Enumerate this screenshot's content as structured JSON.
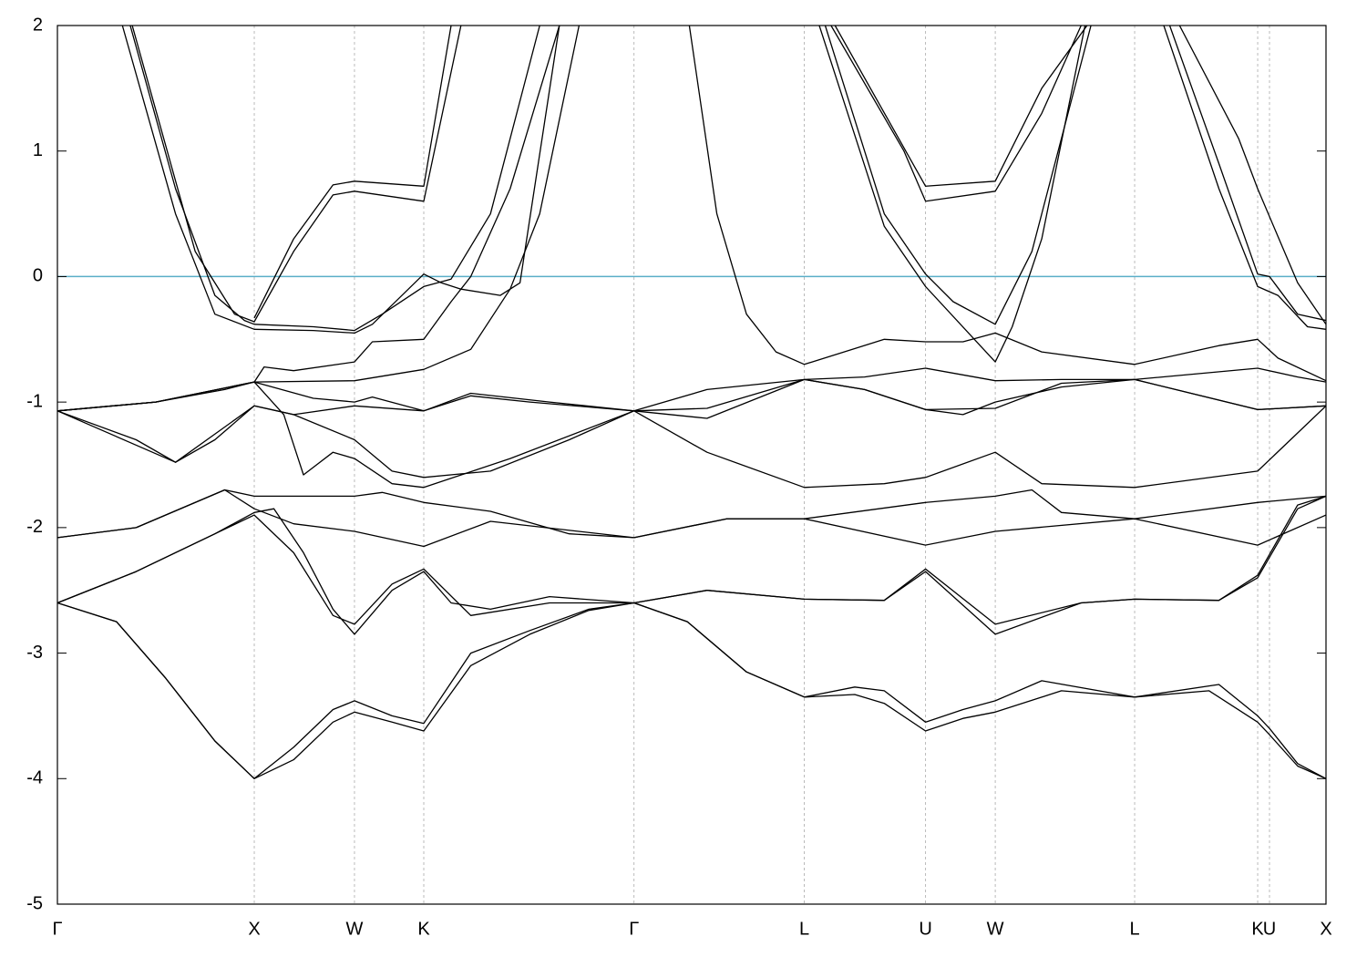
{
  "chart_data": {
    "type": "line",
    "xlim": [
      0,
      6.444
    ],
    "ylim": [
      -5,
      2
    ],
    "yticks": [
      -5,
      -4,
      -3,
      -2,
      -1,
      0,
      1,
      2
    ],
    "xticks": [
      {
        "value": 0,
        "label": "Γ"
      },
      {
        "value": 1.0,
        "label": "X"
      },
      {
        "value": 1.509,
        "label": "W"
      },
      {
        "value": 1.861,
        "label": "K"
      },
      {
        "value": 2.929,
        "label": "Γ"
      },
      {
        "value": 3.794,
        "label": "L"
      },
      {
        "value": 4.41,
        "label": "U"
      },
      {
        "value": 4.764,
        "label": "W"
      },
      {
        "value": 5.472,
        "label": "L"
      },
      {
        "value": 6.097,
        "label": "K"
      },
      {
        "value": 6.157,
        "label": "U"
      },
      {
        "value": 6.444,
        "label": "X"
      }
    ],
    "grid": true,
    "grid_color": "#aaaaaa",
    "hline": {
      "value": 0,
      "color": "#5aaec8"
    },
    "series": [
      {
        "color": "#000000",
        "x": [
          0,
          0.3,
          0.55,
          0.8,
          1.0,
          1.2,
          1.4,
          1.509,
          1.7,
          1.861,
          2.1,
          2.4,
          2.7,
          2.929,
          3.2,
          3.5,
          3.794,
          4.05,
          4.2,
          4.41,
          4.6,
          4.764,
          5.1,
          5.472,
          5.85,
          6.097,
          6.157,
          6.3,
          6.444
        ],
        "values": [
          -2.6,
          -2.75,
          -3.2,
          -3.7,
          -4.0,
          -3.85,
          -3.55,
          -3.47,
          -3.55,
          -3.62,
          -3.1,
          -2.85,
          -2.66,
          -2.6,
          -2.75,
          -3.15,
          -3.35,
          -3.33,
          -3.4,
          -3.62,
          -3.52,
          -3.47,
          -3.3,
          -3.35,
          -3.3,
          -3.55,
          -3.65,
          -3.9,
          -4.0
        ]
      },
      {
        "color": "#000000",
        "x": [
          0,
          0.3,
          0.55,
          0.8,
          1.0,
          1.2,
          1.4,
          1.509,
          1.7,
          1.861,
          2.1,
          2.4,
          2.7,
          2.929,
          3.2,
          3.5,
          3.794,
          4.05,
          4.2,
          4.41,
          4.6,
          4.764,
          5.0,
          5.472,
          5.9,
          6.097,
          6.157,
          6.3,
          6.444
        ],
        "values": [
          -2.6,
          -2.75,
          -3.2,
          -3.7,
          -4.0,
          -3.75,
          -3.45,
          -3.38,
          -3.5,
          -3.56,
          -3.0,
          -2.82,
          -2.65,
          -2.6,
          -2.75,
          -3.15,
          -3.35,
          -3.27,
          -3.3,
          -3.55,
          -3.45,
          -3.38,
          -3.22,
          -3.35,
          -3.25,
          -3.5,
          -3.6,
          -3.88,
          -4.0
        ]
      },
      {
        "color": "#000000",
        "x": [
          0,
          0.4,
          0.8,
          1.0,
          1.1,
          1.25,
          1.4,
          1.509,
          1.7,
          1.861,
          2.0,
          2.2,
          2.5,
          2.929,
          3.3,
          3.794,
          4.2,
          4.41,
          4.764,
          5.2,
          5.472,
          5.9,
          6.097,
          6.3,
          6.444
        ],
        "values": [
          -2.6,
          -2.35,
          -2.05,
          -1.88,
          -1.85,
          -2.2,
          -2.65,
          -2.85,
          -2.5,
          -2.35,
          -2.6,
          -2.65,
          -2.55,
          -2.6,
          -2.5,
          -2.57,
          -2.58,
          -2.35,
          -2.85,
          -2.6,
          -2.57,
          -2.58,
          -2.4,
          -1.85,
          -1.75
        ]
      },
      {
        "color": "#000000",
        "x": [
          0,
          0.4,
          0.8,
          1.0,
          1.2,
          1.4,
          1.509,
          1.7,
          1.861,
          2.1,
          2.5,
          2.929,
          3.3,
          3.794,
          4.2,
          4.41,
          4.764,
          5.2,
          5.472,
          5.9,
          6.097,
          6.3,
          6.444
        ],
        "values": [
          -2.6,
          -2.35,
          -2.05,
          -1.9,
          -2.2,
          -2.7,
          -2.77,
          -2.45,
          -2.33,
          -2.7,
          -2.6,
          -2.6,
          -2.5,
          -2.57,
          -2.58,
          -2.33,
          -2.77,
          -2.6,
          -2.57,
          -2.58,
          -2.38,
          -1.82,
          -1.75
        ]
      },
      {
        "color": "#000000",
        "x": [
          0,
          0.4,
          0.85,
          1.0,
          1.2,
          1.509,
          1.861,
          2.2,
          2.929,
          3.4,
          3.794,
          4.41,
          4.764,
          5.472,
          6.097,
          6.444
        ],
        "values": [
          -2.08,
          -2.0,
          -1.7,
          -1.85,
          -1.97,
          -2.03,
          -2.15,
          -1.95,
          -2.08,
          -1.93,
          -1.93,
          -2.14,
          -2.03,
          -1.93,
          -2.14,
          -1.9
        ]
      },
      {
        "color": "#000000",
        "x": [
          0,
          0.4,
          0.85,
          1.0,
          1.509,
          1.65,
          1.861,
          2.2,
          2.6,
          2.929,
          3.4,
          3.794,
          4.41,
          4.764,
          4.95,
          5.1,
          5.472,
          6.097,
          6.444
        ],
        "values": [
          -2.08,
          -2.0,
          -1.7,
          -1.75,
          -1.75,
          -1.72,
          -1.8,
          -1.87,
          -2.05,
          -2.08,
          -1.93,
          -1.93,
          -1.8,
          -1.75,
          -1.7,
          -1.88,
          -1.93,
          -1.8,
          -1.75
        ]
      },
      {
        "color": "#000000",
        "x": [
          0,
          0.4,
          0.6,
          0.8,
          1.0,
          1.2,
          1.509,
          1.7,
          1.861,
          2.2,
          2.6,
          2.929,
          3.3,
          3.794,
          4.2,
          4.41,
          4.764,
          5.0,
          5.472,
          6.097,
          6.444
        ],
        "values": [
          -1.07,
          -1.3,
          -1.48,
          -1.3,
          -1.03,
          -1.1,
          -1.3,
          -1.55,
          -1.6,
          -1.55,
          -1.3,
          -1.07,
          -1.4,
          -1.68,
          -1.65,
          -1.6,
          -1.4,
          -1.65,
          -1.68,
          -1.55,
          -1.03
        ]
      },
      {
        "color": "#000000",
        "x": [
          0,
          0.5,
          0.85,
          1.0,
          1.15,
          1.25,
          1.4,
          1.509,
          1.7,
          1.861,
          2.3,
          2.929,
          3.3,
          3.794,
          4.1,
          4.41,
          4.764,
          5.1,
          5.472,
          6.097,
          6.444
        ],
        "values": [
          -1.07,
          -1.0,
          -0.9,
          -0.84,
          -1.1,
          -1.58,
          -1.4,
          -1.45,
          -1.65,
          -1.68,
          -1.45,
          -1.07,
          -0.9,
          -0.82,
          -0.9,
          -1.06,
          -1.05,
          -0.85,
          -0.82,
          -1.06,
          -1.03
        ]
      },
      {
        "color": "#000000",
        "x": [
          0,
          0.5,
          1.0,
          1.05,
          1.2,
          1.509,
          1.6,
          1.861,
          2.0,
          2.1,
          2.3,
          2.55
        ],
        "values": [
          -1.07,
          -1.0,
          -0.84,
          -0.72,
          -0.75,
          -0.68,
          -0.52,
          -0.5,
          -0.2,
          0.0,
          0.7,
          2.0
        ]
      },
      {
        "color": "#000000",
        "x": [
          0,
          0.5,
          1.0,
          1.509,
          1.861,
          2.1,
          2.3,
          2.45,
          2.65
        ],
        "values": [
          -1.07,
          -1.0,
          -0.84,
          -0.83,
          -0.74,
          -0.58,
          -0.1,
          0.5,
          2.0
        ]
      },
      {
        "color": "#000000",
        "x": [
          0,
          0.6,
          1.0,
          1.2,
          1.509,
          1.861,
          2.1,
          2.4,
          2.929,
          3.3,
          3.794,
          4.1,
          4.41,
          4.764,
          5.1,
          5.472,
          6.097,
          6.3,
          6.444
        ],
        "values": [
          -1.07,
          -1.48,
          -1.03,
          -1.1,
          -1.03,
          -1.07,
          -0.95,
          -1.0,
          -1.07,
          -1.05,
          -0.82,
          -0.8,
          -0.73,
          -0.83,
          -0.82,
          -0.82,
          -0.73,
          -0.8,
          -0.84
        ]
      },
      {
        "color": "#000000",
        "x": [
          0,
          0.5,
          1.0,
          1.3,
          1.509,
          1.6,
          1.861,
          2.1,
          2.5,
          2.929,
          3.3,
          3.794,
          4.1,
          4.41,
          4.6,
          4.764,
          5.1,
          5.472,
          6.097,
          6.444
        ],
        "values": [
          -1.07,
          -1.0,
          -0.84,
          -0.97,
          -1.0,
          -0.96,
          -1.07,
          -0.93,
          -1.0,
          -1.07,
          -1.13,
          -0.82,
          -0.9,
          -1.06,
          -1.1,
          -1.0,
          -0.88,
          -0.82,
          -1.06,
          -1.03
        ]
      },
      {
        "color": "#000000",
        "x": [
          3.21,
          3.35,
          3.5,
          3.65,
          3.794,
          4.2,
          4.41,
          4.6,
          4.764,
          5.0,
          5.472,
          5.9,
          6.097,
          6.2,
          6.444
        ],
        "values": [
          2.0,
          0.5,
          -0.3,
          -0.6,
          -0.7,
          -0.5,
          -0.52,
          -0.52,
          -0.45,
          -0.6,
          -0.7,
          -0.55,
          -0.5,
          -0.65,
          -0.83
        ]
      },
      {
        "color": "#000000",
        "x": [
          0.37,
          0.6,
          0.8,
          0.95,
          1.0,
          1.3,
          1.509,
          1.65,
          1.861,
          2.0,
          2.2,
          2.45
        ],
        "values": [
          2.0,
          0.7,
          -0.15,
          -0.35,
          -0.38,
          -0.4,
          -0.43,
          -0.3,
          -0.08,
          -0.02,
          0.5,
          2.0
        ]
      },
      {
        "color": "#000000",
        "x": [
          0.33,
          0.6,
          0.8,
          1.0,
          1.3,
          1.509,
          1.6,
          1.861,
          1.95,
          2.05,
          2.25,
          2.35,
          2.55
        ],
        "values": [
          2.0,
          0.5,
          -0.3,
          -0.42,
          -0.43,
          -0.45,
          -0.38,
          0.02,
          -0.05,
          -0.1,
          -0.15,
          -0.05,
          2.0
        ]
      },
      {
        "color": "#000000",
        "x": [
          0.38,
          0.7,
          0.9,
          1.0,
          1.2,
          1.4,
          1.509,
          1.861,
          2.05
        ],
        "values": [
          2.0,
          0.2,
          -0.3,
          -0.36,
          0.2,
          0.65,
          0.68,
          0.6,
          2.0
        ]
      },
      {
        "color": "#000000",
        "x": [
          1.0,
          1.2,
          1.4,
          1.509,
          1.861,
          2.0
        ],
        "values": [
          -0.33,
          0.3,
          0.73,
          0.76,
          0.72,
          2.0
        ]
      },
      {
        "color": "#000000",
        "x": [
          3.9,
          4.2,
          4.41,
          4.55,
          4.764,
          4.95,
          5.25
        ],
        "values": [
          2.0,
          0.5,
          0.02,
          -0.2,
          -0.38,
          0.2,
          2.0
        ]
      },
      {
        "color": "#000000",
        "x": [
          3.87,
          4.2,
          4.41,
          4.764,
          4.85,
          5.0,
          5.22
        ],
        "values": [
          2.0,
          0.4,
          -0.08,
          -0.68,
          -0.4,
          0.3,
          2.0
        ]
      },
      {
        "color": "#000000",
        "x": [
          3.93,
          4.3,
          4.41,
          4.764,
          5.0,
          5.2
        ],
        "values": [
          2.0,
          1.0,
          0.6,
          0.68,
          1.3,
          2.0
        ]
      },
      {
        "color": "#000000",
        "x": [
          3.95,
          4.41,
          4.764,
          5.0,
          5.23
        ],
        "values": [
          2.0,
          0.72,
          0.76,
          1.5,
          2.0
        ]
      },
      {
        "color": "#000000",
        "x": [
          5.65,
          5.9,
          6.097,
          6.157,
          6.3,
          6.444
        ],
        "values": [
          2.0,
          0.9,
          0.02,
          0.0,
          -0.3,
          -0.35
        ]
      },
      {
        "color": "#000000",
        "x": [
          5.62,
          5.9,
          6.097,
          6.2,
          6.35,
          6.444
        ],
        "values": [
          2.0,
          0.7,
          -0.08,
          -0.15,
          -0.4,
          -0.42
        ]
      },
      {
        "color": "#000000",
        "x": [
          5.7,
          6.0,
          6.097,
          6.3,
          6.444
        ],
        "values": [
          2.0,
          1.1,
          0.7,
          -0.05,
          -0.38
        ]
      }
    ]
  }
}
